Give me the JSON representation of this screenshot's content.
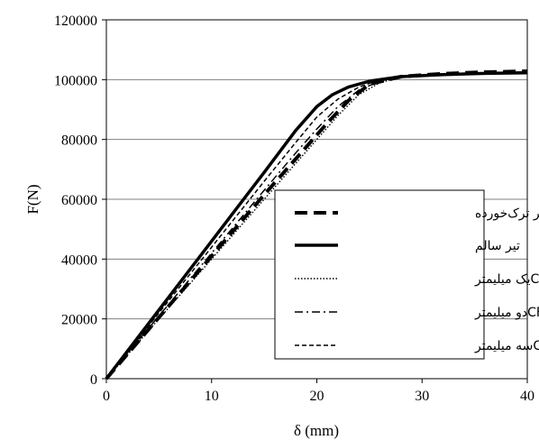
{
  "chart_data": {
    "type": "line",
    "xlabel": "δ (mm)",
    "ylabel": "F(N)",
    "xlim": [
      0,
      40
    ],
    "ylim": [
      0,
      120000
    ],
    "xticks": [
      0,
      10,
      20,
      30,
      40
    ],
    "yticks": [
      0,
      20000,
      40000,
      60000,
      80000,
      100000,
      120000
    ],
    "grid": "horizontal",
    "legend_position": "right",
    "colors": {
      "line": "#000000",
      "grid": "#808080"
    },
    "series": [
      {
        "name": "تیر ترک‌خورده",
        "style": "long-dash-thick",
        "x": [
          0,
          5,
          10,
          15,
          19,
          21,
          23,
          25,
          28,
          32,
          36,
          40
        ],
        "y": [
          0,
          20500,
          41000,
          61500,
          77500,
          85500,
          93000,
          98500,
          101000,
          102000,
          102500,
          102800
        ]
      },
      {
        "name": "تیر سالم",
        "style": "solid-thick",
        "x": [
          0,
          5,
          10,
          15,
          18,
          20,
          21.5,
          23,
          25,
          28,
          32,
          36,
          40
        ],
        "y": [
          0,
          23000,
          46000,
          69000,
          83000,
          91000,
          95000,
          97500,
          99500,
          101000,
          101700,
          102100,
          102300
        ]
      },
      {
        "name": "CFRPیک میلیمتر",
        "style": "dotted",
        "x": [
          0,
          5,
          10,
          15,
          18,
          20,
          22,
          24,
          26,
          28,
          32,
          36,
          40
        ],
        "y": [
          0,
          20000,
          40000,
          60000,
          72000,
          80000,
          88000,
          95000,
          99000,
          100800,
          101800,
          102300,
          102600
        ]
      },
      {
        "name": "CFRPدو میلیمتر",
        "style": "dash-dot",
        "x": [
          0,
          5,
          10,
          15,
          18,
          20,
          22,
          24,
          26,
          28,
          32,
          36,
          40
        ],
        "y": [
          0,
          21000,
          42000,
          63000,
          75500,
          83500,
          91000,
          96500,
          99500,
          101000,
          101900,
          102300,
          102600
        ]
      },
      {
        "name": "CFRPسه میلیمتر",
        "style": "short-dash",
        "x": [
          0,
          5,
          10,
          15,
          18,
          20,
          22,
          24,
          26,
          28,
          32,
          36,
          40
        ],
        "y": [
          0,
          22000,
          44000,
          66000,
          79000,
          87500,
          93500,
          97500,
          100000,
          101200,
          101900,
          102300,
          102600
        ]
      }
    ]
  }
}
